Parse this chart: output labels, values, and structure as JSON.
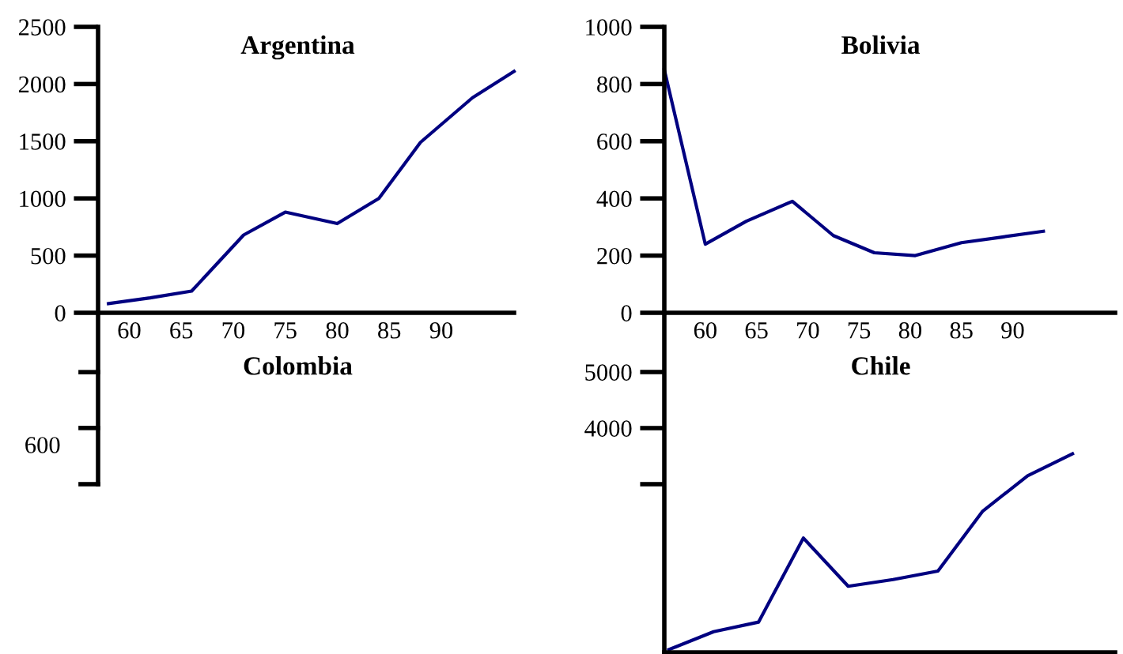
{
  "chart_data": [
    {
      "type": "line",
      "title": "Argentina",
      "xlim": [
        57,
        97
      ],
      "xticks": [
        60,
        65,
        70,
        75,
        80,
        85,
        90
      ],
      "ylim": [
        0,
        2500
      ],
      "yticks": [
        0,
        500,
        1000,
        1500,
        2000,
        2500
      ],
      "grid": false,
      "legend": false,
      "marker": "none",
      "line_style": "solid",
      "series": [
        {
          "color": "#000080",
          "x": [
            58,
            62,
            66,
            71,
            75,
            80,
            84,
            88,
            93,
            97
          ],
          "values": [
            80,
            130,
            190,
            680,
            880,
            780,
            1000,
            1490,
            1880,
            2110
          ]
        }
      ]
    },
    {
      "type": "line",
      "title": "Bolivia",
      "xlim": [
        56,
        100
      ],
      "xticks": [
        60,
        65,
        70,
        75,
        80,
        85,
        90
      ],
      "ylim": [
        0,
        1000
      ],
      "yticks": [
        0,
        200,
        400,
        600,
        800,
        1000
      ],
      "grid": false,
      "legend": false,
      "marker": "none",
      "line_style": "solid",
      "series": [
        {
          "color": "#000080",
          "x": [
            56,
            60,
            64,
            68.5,
            72.5,
            76.5,
            80.5,
            85,
            89,
            93
          ],
          "values": [
            850,
            240,
            320,
            390,
            270,
            210,
            200,
            245,
            265,
            285
          ]
        }
      ]
    },
    {
      "type": "other",
      "title": "Colombia",
      "annotations": [
        "600"
      ]
    },
    {
      "type": "line",
      "title": "Chile",
      "categories": [
        null,
        null,
        null,
        null,
        null,
        null,
        null,
        null,
        null,
        null
      ],
      "ylim": [
        0,
        6000
      ],
      "yticks": [
        5000,
        4000,
        {
          "value": 3000,
          "label": null
        }
      ],
      "tick_labels": "y",
      "grid": false,
      "legend": false,
      "marker": "none",
      "line_style": "solid",
      "series": [
        {
          "color": "#000080",
          "values": [
            50,
            370,
            540,
            2040,
            1180,
            1300,
            1450,
            2520,
            3150,
            3540
          ]
        }
      ]
    }
  ]
}
